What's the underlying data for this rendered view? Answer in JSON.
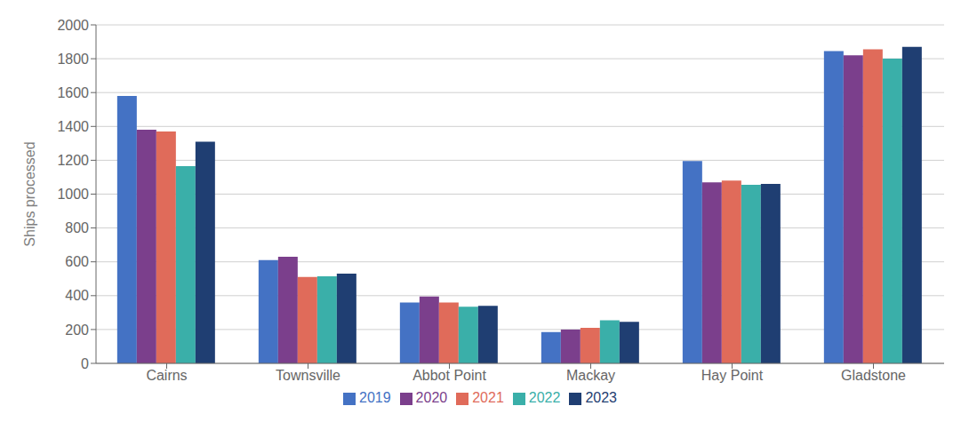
{
  "chart_data": {
    "type": "bar",
    "categories": [
      "Cairns",
      "Townsville",
      "Abbot Point",
      "Mackay",
      "Hay Point",
      "Gladstone"
    ],
    "series": [
      {
        "name": "2019",
        "color": "#4472C4",
        "values": [
          1580,
          610,
          360,
          185,
          1195,
          1845
        ]
      },
      {
        "name": "2020",
        "color": "#7B3F8C",
        "values": [
          1380,
          630,
          395,
          200,
          1070,
          1820
        ]
      },
      {
        "name": "2021",
        "color": "#E06B5A",
        "values": [
          1370,
          510,
          360,
          210,
          1080,
          1855
        ]
      },
      {
        "name": "2022",
        "color": "#3AAFA9",
        "values": [
          1165,
          515,
          335,
          255,
          1055,
          1800
        ]
      },
      {
        "name": "2023",
        "color": "#1F3E72",
        "values": [
          1310,
          530,
          340,
          245,
          1060,
          1870
        ]
      }
    ],
    "ylabel": "Ships processed",
    "ylim": [
      0,
      2000
    ],
    "yticks": [
      0,
      200,
      400,
      600,
      800,
      1000,
      1200,
      1400,
      1600,
      1800,
      2000
    ],
    "grid": true,
    "legend": "bottom"
  }
}
